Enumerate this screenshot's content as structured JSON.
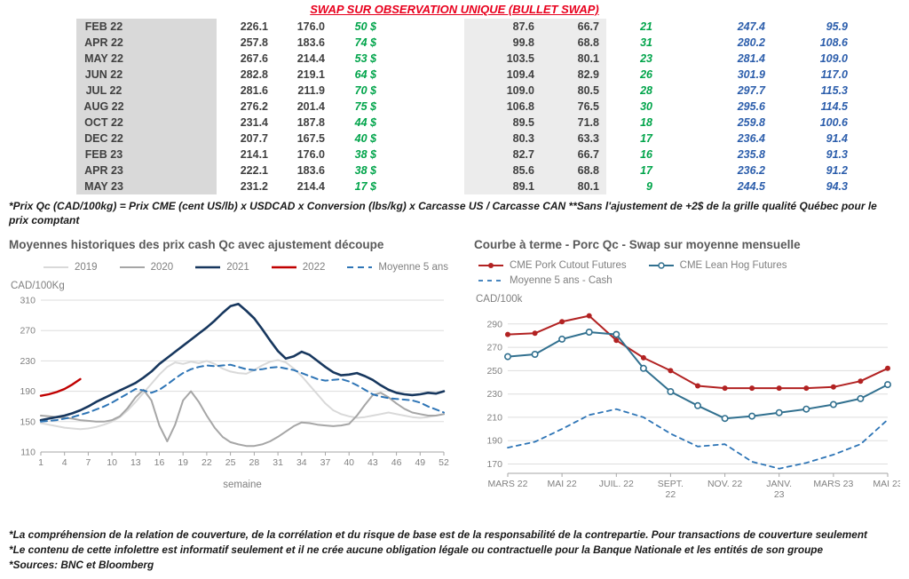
{
  "title": "SWAP SUR OBSERVATION UNIQUE (BULLET SWAP)",
  "colors": {
    "title_red": "#e8001d",
    "green": "#00a44a",
    "blue": "#2b5dab",
    "month_bg": "#d9d9d9",
    "shaded_bg": "#ececec",
    "navy_2021": "#17375e",
    "red_2022": "#c00000",
    "dashed_blue": "#2e75b6"
  },
  "table": {
    "rows": [
      {
        "month": "FEB 22",
        "qc_swap": "226.1",
        "qc_cash": "176.0",
        "gain_cad": "50 $",
        "us_swap": "87.6",
        "us_cash": "66.7",
        "gain_pct": "21",
        "fwd_qc": "247.4",
        "fwd_us": "95.9"
      },
      {
        "month": "APR 22",
        "qc_swap": "257.8",
        "qc_cash": "183.6",
        "gain_cad": "74 $",
        "us_swap": "99.8",
        "us_cash": "68.8",
        "gain_pct": "31",
        "fwd_qc": "280.2",
        "fwd_us": "108.6"
      },
      {
        "month": "MAY 22",
        "qc_swap": "267.6",
        "qc_cash": "214.4",
        "gain_cad": "53 $",
        "us_swap": "103.5",
        "us_cash": "80.1",
        "gain_pct": "23",
        "fwd_qc": "281.4",
        "fwd_us": "109.0"
      },
      {
        "month": "JUN 22",
        "qc_swap": "282.8",
        "qc_cash": "219.1",
        "gain_cad": "64 $",
        "us_swap": "109.4",
        "us_cash": "82.9",
        "gain_pct": "26",
        "fwd_qc": "301.9",
        "fwd_us": "117.0"
      },
      {
        "month": "JUL 22",
        "qc_swap": "281.6",
        "qc_cash": "211.9",
        "gain_cad": "70 $",
        "us_swap": "109.0",
        "us_cash": "80.5",
        "gain_pct": "28",
        "fwd_qc": "297.7",
        "fwd_us": "115.3"
      },
      {
        "month": "AUG 22",
        "qc_swap": "276.2",
        "qc_cash": "201.4",
        "gain_cad": "75 $",
        "us_swap": "106.8",
        "us_cash": "76.5",
        "gain_pct": "30",
        "fwd_qc": "295.6",
        "fwd_us": "114.5"
      },
      {
        "month": "OCT 22",
        "qc_swap": "231.4",
        "qc_cash": "187.8",
        "gain_cad": "44 $",
        "us_swap": "89.5",
        "us_cash": "71.8",
        "gain_pct": "18",
        "fwd_qc": "259.8",
        "fwd_us": "100.6"
      },
      {
        "month": "DEC 22",
        "qc_swap": "207.7",
        "qc_cash": "167.5",
        "gain_cad": "40 $",
        "us_swap": "80.3",
        "us_cash": "63.3",
        "gain_pct": "17",
        "fwd_qc": "236.4",
        "fwd_us": "91.4"
      },
      {
        "month": "FEB 23",
        "qc_swap": "214.1",
        "qc_cash": "176.0",
        "gain_cad": "38 $",
        "us_swap": "82.7",
        "us_cash": "66.7",
        "gain_pct": "16",
        "fwd_qc": "235.8",
        "fwd_us": "91.3"
      },
      {
        "month": "APR 23",
        "qc_swap": "222.1",
        "qc_cash": "183.6",
        "gain_cad": "38 $",
        "us_swap": "85.6",
        "us_cash": "68.8",
        "gain_pct": "17",
        "fwd_qc": "236.2",
        "fwd_us": "91.2"
      },
      {
        "month": "MAY 23",
        "qc_swap": "231.2",
        "qc_cash": "214.4",
        "gain_cad": "17 $",
        "us_swap": "89.1",
        "us_cash": "80.1",
        "gain_pct": "9",
        "fwd_qc": "244.5",
        "fwd_us": "94.3"
      }
    ]
  },
  "table_footnote": "*Prix Qc (CAD/100kg) = Prix CME (cent US/lb) x USDCAD x Conversion (lbs/kg) x Carcasse US / Carcasse CAN **Sans l'ajustement de +2$ de la grille qualité Québec pour le prix comptant",
  "chart_data": [
    {
      "type": "line",
      "title": "Moyennes historiques des prix cash Qc avec ajustement découpe",
      "y_unit": "CAD/100Kg",
      "xlabel": "semaine",
      "ylim": [
        110,
        310
      ],
      "yticks": [
        110,
        150,
        190,
        230,
        270,
        310
      ],
      "x_range": [
        1,
        52
      ],
      "x_ticks": [
        1,
        4,
        7,
        10,
        13,
        16,
        19,
        22,
        25,
        28,
        31,
        34,
        37,
        40,
        43,
        46,
        49,
        52
      ],
      "grid": true,
      "legend_position": "top",
      "series": [
        {
          "name": "2019",
          "color": "#d9d9d9",
          "width": 2,
          "x_start": 1,
          "values": [
            148,
            146,
            144,
            142,
            141,
            140,
            141,
            143,
            146,
            150,
            156,
            165,
            176,
            188,
            200,
            212,
            222,
            228,
            226,
            229,
            227,
            230,
            226,
            220,
            216,
            214,
            213,
            218,
            224,
            229,
            231,
            228,
            220,
            210,
            198,
            186,
            174,
            165,
            160,
            157,
            155,
            156,
            158,
            160,
            162,
            160,
            158,
            156,
            155,
            156,
            158,
            160
          ]
        },
        {
          "name": "2020",
          "color": "#a6a6a6",
          "width": 2,
          "x_start": 1,
          "values": [
            158,
            157,
            156,
            155,
            154,
            152,
            151,
            150,
            150,
            152,
            157,
            168,
            182,
            192,
            178,
            145,
            124,
            146,
            178,
            190,
            176,
            158,
            142,
            130,
            123,
            120,
            118,
            118,
            120,
            124,
            130,
            137,
            144,
            149,
            148,
            146,
            145,
            144,
            145,
            147,
            158,
            172,
            185,
            188,
            182,
            174,
            167,
            162,
            160,
            158,
            158,
            160
          ]
        },
        {
          "name": "2021",
          "color": "#17375e",
          "width": 2.6,
          "x_start": 1,
          "values": [
            152,
            154,
            156,
            158,
            161,
            165,
            170,
            176,
            181,
            186,
            191,
            196,
            201,
            208,
            216,
            226,
            234,
            242,
            250,
            258,
            266,
            274,
            283,
            293,
            302,
            305,
            296,
            286,
            272,
            257,
            243,
            233,
            236,
            242,
            238,
            230,
            222,
            215,
            211,
            212,
            214,
            210,
            205,
            198,
            192,
            188,
            186,
            185,
            186,
            188,
            187,
            190
          ]
        },
        {
          "name": "2022",
          "color": "#c00000",
          "width": 2.4,
          "x_start": 1,
          "values": [
            184,
            186,
            189,
            193,
            199,
            206
          ]
        },
        {
          "name": "Moyenne 5 ans",
          "color": "#2e75b6",
          "width": 2,
          "dash": "7 5",
          "x_start": 1,
          "values": [
            150,
            151,
            152,
            154,
            156,
            159,
            162,
            166,
            170,
            175,
            181,
            187,
            193,
            191,
            188,
            192,
            199,
            207,
            214,
            219,
            222,
            224,
            223,
            224,
            225,
            222,
            219,
            218,
            219,
            221,
            222,
            220,
            218,
            214,
            210,
            206,
            204,
            205,
            206,
            203,
            198,
            192,
            186,
            183,
            181,
            180,
            179,
            178,
            175,
            170,
            166,
            162
          ]
        }
      ]
    },
    {
      "type": "line",
      "title": "Courbe à terme - Porc Qc - Swap sur moyenne mensuelle",
      "y_unit": "CAD/100k",
      "ylim": [
        170,
        290
      ],
      "yticks": [
        170,
        190,
        210,
        230,
        250,
        270,
        290
      ],
      "x_tick_positions": [
        0,
        2,
        4,
        6,
        8,
        10,
        12,
        14
      ],
      "x_labels": [
        "MARS 22",
        "MAI 22",
        "JUIL. 22",
        "SEPT.\n22",
        "NOV. 22",
        "JANV.\n23",
        "MARS 23",
        "MAI 23"
      ],
      "grid": true,
      "legend_position": "top",
      "series": [
        {
          "name": "CME Pork Cutout Futures",
          "color": "#b22222",
          "width": 2,
          "marker": "dot",
          "values": [
            281,
            282,
            292,
            297,
            276,
            261,
            250,
            237,
            235,
            235,
            235,
            235,
            236,
            241,
            252
          ]
        },
        {
          "name": "CME Lean Hog Futures",
          "color": "#31708f",
          "width": 2,
          "marker": "circle",
          "values": [
            262,
            264,
            277,
            283,
            281,
            252,
            232,
            220,
            209,
            211,
            214,
            217,
            221,
            226,
            238
          ]
        },
        {
          "name": "Moyenne 5 ans - Cash",
          "color": "#2e75b6",
          "width": 1.8,
          "dash": "5 5",
          "values": [
            184,
            189,
            200,
            212,
            217,
            210,
            196,
            185,
            187,
            172,
            166,
            171,
            178,
            187,
            208
          ]
        }
      ]
    }
  ],
  "footnotes": [
    "*La compréhension de la relation de couverture, de la corrélation et du risque de base est de la responsabilité de la contrepartie. Pour transactions de couverture seulement",
    "*Le contenu de cette infolettre est informatif seulement et il ne crée aucune obligation légale ou contractuelle pour la Banque Nationale et les entités de son groupe",
    "*Sources: BNC et Bloomberg"
  ]
}
